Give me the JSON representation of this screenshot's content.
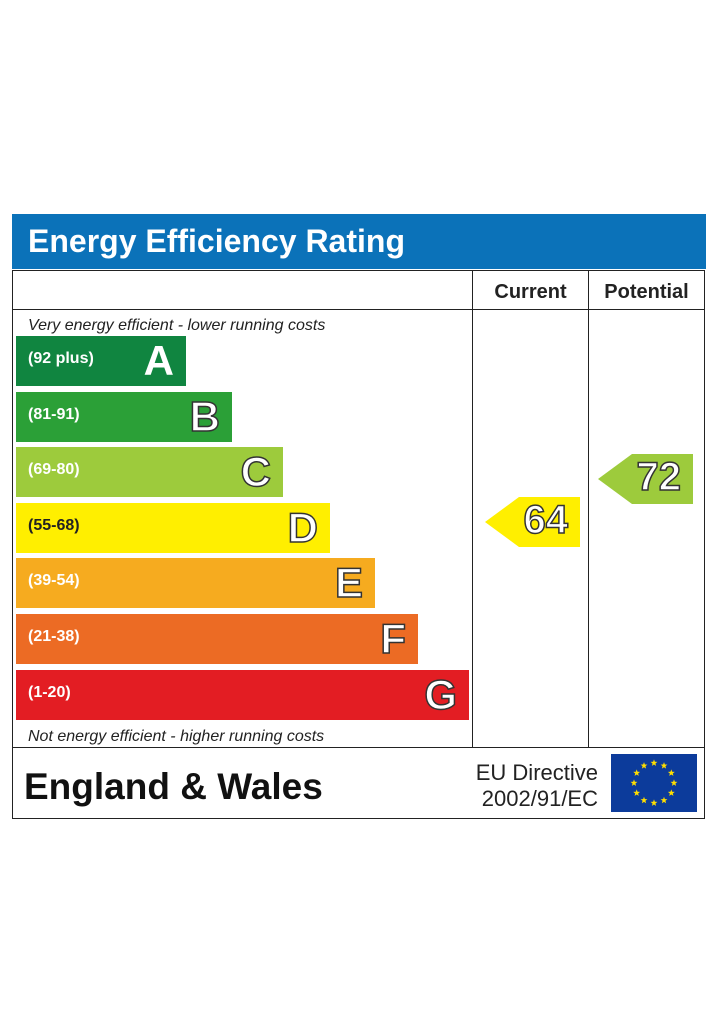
{
  "title": "Energy Efficiency Rating",
  "headers": {
    "current": "Current",
    "potential": "Potential"
  },
  "notes": {
    "top": "Very energy efficient - lower running costs",
    "bottom": "Not energy efficient - higher running costs"
  },
  "chart_data": {
    "type": "bar",
    "categories": [
      "A",
      "B",
      "C",
      "D",
      "E",
      "F",
      "G"
    ],
    "bands": [
      {
        "letter": "A",
        "range": "(92 plus)",
        "min": 92,
        "max": 100,
        "color": "#108540"
      },
      {
        "letter": "B",
        "range": "(81-91)",
        "min": 81,
        "max": 91,
        "color": "#2ba037"
      },
      {
        "letter": "C",
        "range": "(69-80)",
        "min": 69,
        "max": 80,
        "color": "#9dcb3c"
      },
      {
        "letter": "D",
        "range": "(55-68)",
        "min": 55,
        "max": 68,
        "color": "#ffef00"
      },
      {
        "letter": "E",
        "range": "(39-54)",
        "min": 39,
        "max": 54,
        "color": "#f6ab1f"
      },
      {
        "letter": "F",
        "range": "(21-38)",
        "min": 21,
        "max": 38,
        "color": "#ec6b24"
      },
      {
        "letter": "G",
        "range": "(1-20)",
        "min": 1,
        "max": 20,
        "color": "#e31d23"
      }
    ],
    "current": {
      "value": 64,
      "band": "D",
      "color": "#ffef00"
    },
    "potential": {
      "value": 72,
      "band": "C",
      "color": "#9dcb3c"
    }
  },
  "footer": {
    "region": "England & Wales",
    "directive_line1": "EU Directive",
    "directive_line2": "2002/91/EC"
  },
  "colors": {
    "title_bar": "#0b72b9",
    "flag": "#0c3b9b",
    "stars": "#ffde00"
  },
  "icons": {
    "flag": "eu-flag-icon"
  }
}
